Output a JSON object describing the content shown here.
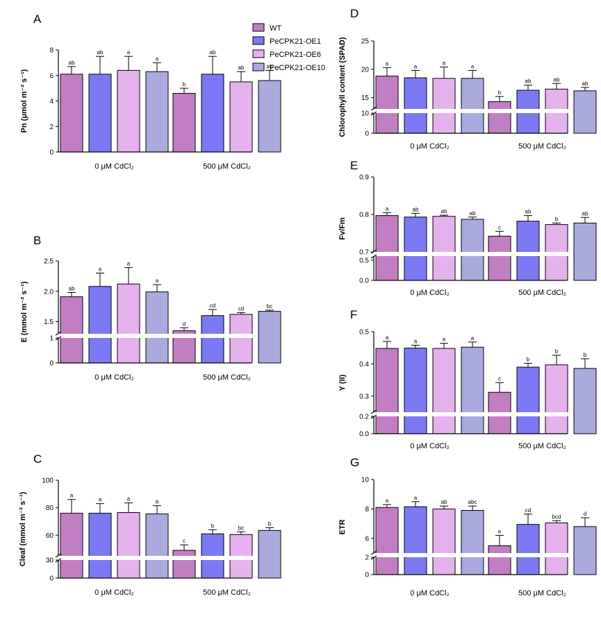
{
  "colors": {
    "WT": "#c27ec3",
    "PeCPK21-OE1": "#7b79f4",
    "PeCPK21-OE6": "#e6b2ee",
    "PeCPK21-OE10": "#aaaadf"
  },
  "legend": [
    "WT",
    "PeCPK21-OE1",
    "PeCPK21-OE6",
    "PeCPK21-OE10"
  ],
  "chart_data": [
    {
      "id": "A",
      "panel": "A",
      "type": "bar",
      "ylabel": "Pn (μmol m⁻² s⁻¹)",
      "categories": [
        "0 μM CdCl₂",
        "500 μM CdCl₂"
      ],
      "yticks": [
        "0",
        "2",
        "4",
        "6",
        "8"
      ],
      "ylim": [
        0,
        8
      ],
      "series": [
        {
          "name": "WT",
          "values": [
            6.1,
            4.6
          ],
          "errors": [
            0.6,
            0.4
          ],
          "letters": [
            "ab",
            "b"
          ]
        },
        {
          "name": "PeCPK21-OE1",
          "values": [
            6.1,
            6.1
          ],
          "errors": [
            1.4,
            1.4
          ],
          "letters": [
            "ab",
            "ab"
          ]
        },
        {
          "name": "PeCPK21-OE6",
          "values": [
            6.4,
            5.5
          ],
          "errors": [
            1.1,
            0.8
          ],
          "letters": [
            "a",
            "ab"
          ]
        },
        {
          "name": "PeCPK21-OE10",
          "values": [
            6.3,
            5.6
          ],
          "errors": [
            0.7,
            0.8
          ],
          "letters": [
            "a",
            "ab"
          ]
        }
      ]
    },
    {
      "id": "B",
      "panel": "B",
      "type": "bar",
      "ylabel": "E (mmol m⁻² s⁻¹)",
      "categories": [
        "0 μM CdCl₂",
        "500 μM CdCl₂"
      ],
      "yticks": [
        "0",
        "1",
        "1.5",
        "2.0",
        "2.5"
      ],
      "axis_break": [
        1,
        1.3
      ],
      "ylim": [
        0,
        2.5
      ],
      "series": [
        {
          "name": "WT",
          "values": [
            1.91,
            1.35
          ],
          "errors": [
            0.07,
            0.05
          ],
          "letters": [
            "ab",
            "d"
          ]
        },
        {
          "name": "PeCPK21-OE1",
          "values": [
            2.08,
            1.6
          ],
          "errors": [
            0.22,
            0.1
          ],
          "letters": [
            "a",
            "cd"
          ]
        },
        {
          "name": "PeCPK21-OE6",
          "values": [
            2.12,
            1.62
          ],
          "errors": [
            0.27,
            0.03
          ],
          "letters": [
            "a",
            "cd"
          ]
        },
        {
          "name": "PeCPK21-OE10",
          "values": [
            1.99,
            1.67
          ],
          "errors": [
            0.12,
            0.02
          ],
          "letters": [
            "a",
            "bc"
          ]
        }
      ]
    },
    {
      "id": "C",
      "panel": "C",
      "type": "bar",
      "ylabel": "Cleaf (mmol m⁻² s⁻¹)",
      "categories": [
        "0 μM CdCl₂",
        "500 μM CdCl₂"
      ],
      "yticks": [
        "0",
        "30",
        "60",
        "80",
        "100"
      ],
      "axis_break": [
        30,
        45
      ],
      "ylim": [
        0,
        100
      ],
      "series": [
        {
          "name": "WT",
          "values": [
            76,
            49
          ],
          "errors": [
            10,
            4
          ],
          "letters": [
            "a",
            "c"
          ]
        },
        {
          "name": "PeCPK21-OE1",
          "values": [
            76,
            61
          ],
          "errors": [
            7,
            3
          ],
          "letters": [
            "a",
            "b"
          ]
        },
        {
          "name": "PeCPK21-OE6",
          "values": [
            76.5,
            60.5
          ],
          "errors": [
            7,
            2
          ],
          "letters": [
            "a",
            "bc"
          ]
        },
        {
          "name": "PeCPK21-OE10",
          "values": [
            75.5,
            63.5
          ],
          "errors": [
            6,
            2
          ],
          "letters": [
            "a",
            "b"
          ]
        }
      ]
    },
    {
      "id": "D",
      "panel": "D",
      "type": "bar",
      "ylabel": "Chlorophyll content (SPAD)",
      "categories": [
        "0 μM CdCl₂",
        "500 μM CdCl₂"
      ],
      "yticks": [
        "0",
        "10",
        "15",
        "20",
        "25"
      ],
      "axis_break": [
        10,
        13
      ],
      "ylim": [
        0,
        25
      ],
      "series": [
        {
          "name": "WT",
          "values": [
            18.8,
            14.3
          ],
          "errors": [
            1.5,
            0.9
          ],
          "letters": [
            "a",
            "b"
          ]
        },
        {
          "name": "PeCPK21-OE1",
          "values": [
            18.5,
            16.3
          ],
          "errors": [
            1.3,
            0.9
          ],
          "letters": [
            "a",
            "ab"
          ]
        },
        {
          "name": "PeCPK21-OE6",
          "values": [
            18.4,
            16.5
          ],
          "errors": [
            2.0,
            1.0
          ],
          "letters": [
            "a",
            "ab"
          ]
        },
        {
          "name": "PeCPK21-OE10",
          "values": [
            18.4,
            16.2
          ],
          "errors": [
            1.4,
            0.6
          ],
          "letters": [
            "a",
            "ab"
          ]
        }
      ]
    },
    {
      "id": "E",
      "panel": "E",
      "type": "bar",
      "ylabel": "Fv/Fm",
      "categories": [
        "0 μM CdCl₂",
        "500 μM CdCl₂"
      ],
      "yticks": [
        "0.0",
        "0.5",
        "0.7",
        "0.8",
        "0.9"
      ],
      "axis_break": [
        0.6,
        0.7
      ],
      "ylim": [
        0,
        0.9
      ],
      "series": [
        {
          "name": "WT",
          "values": [
            0.797,
            0.742
          ],
          "errors": [
            0.008,
            0.013
          ],
          "letters": [
            "a",
            "c"
          ]
        },
        {
          "name": "PeCPK21-OE1",
          "values": [
            0.793,
            0.782
          ],
          "errors": [
            0.01,
            0.015
          ],
          "letters": [
            "ab",
            "ab"
          ]
        },
        {
          "name": "PeCPK21-OE6",
          "values": [
            0.795,
            0.773
          ],
          "errors": [
            0.003,
            0.004
          ],
          "letters": [
            "ab",
            "b"
          ]
        },
        {
          "name": "PeCPK21-OE10",
          "values": [
            0.787,
            0.777
          ],
          "errors": [
            0.006,
            0.015
          ],
          "letters": [
            "ab",
            "ab"
          ]
        }
      ]
    },
    {
      "id": "F",
      "panel": "F",
      "type": "bar",
      "ylabel": "Y (II)",
      "categories": [
        "0 μM CdCl₂",
        "500 μM CdCl₂"
      ],
      "yticks": [
        "0.0",
        "0.2",
        "0.3",
        "0.4",
        "0.5"
      ],
      "axis_break": [
        0.2,
        0.25
      ],
      "ylim": [
        0,
        0.5
      ],
      "series": [
        {
          "name": "WT",
          "values": [
            0.448,
            0.312
          ],
          "errors": [
            0.022,
            0.03
          ],
          "letters": [
            "a",
            "c"
          ]
        },
        {
          "name": "PeCPK21-OE1",
          "values": [
            0.449,
            0.39
          ],
          "errors": [
            0.009,
            0.012
          ],
          "letters": [
            "a",
            "b"
          ]
        },
        {
          "name": "PeCPK21-OE6",
          "values": [
            0.448,
            0.397
          ],
          "errors": [
            0.016,
            0.03
          ],
          "letters": [
            "a",
            "b"
          ]
        },
        {
          "name": "PeCPK21-OE10",
          "values": [
            0.452,
            0.386
          ],
          "errors": [
            0.016,
            0.03
          ],
          "letters": [
            "a",
            "b"
          ]
        }
      ]
    },
    {
      "id": "G",
      "panel": "G",
      "type": "bar",
      "ylabel": "ETR",
      "categories": [
        "0 μM CdCl₂",
        "500 μM CdCl₂"
      ],
      "yticks": [
        "0",
        "2",
        "6",
        "8",
        "10"
      ],
      "axis_break": [
        2,
        5
      ],
      "ylim": [
        0,
        10
      ],
      "series": [
        {
          "name": "WT",
          "values": [
            8.1,
            5.5
          ],
          "errors": [
            0.2,
            0.7
          ],
          "letters": [
            "a",
            "e"
          ]
        },
        {
          "name": "PeCPK21-OE1",
          "values": [
            8.15,
            6.95
          ],
          "errors": [
            0.35,
            0.7
          ],
          "letters": [
            "a",
            "cd"
          ]
        },
        {
          "name": "PeCPK21-OE6",
          "values": [
            8.0,
            7.05
          ],
          "errors": [
            0.2,
            0.15
          ],
          "letters": [
            "ab",
            "bcd"
          ]
        },
        {
          "name": "PeCPK21-OE10",
          "values": [
            7.9,
            6.8
          ],
          "errors": [
            0.3,
            0.6
          ],
          "letters": [
            "abc",
            "d"
          ]
        }
      ]
    }
  ]
}
